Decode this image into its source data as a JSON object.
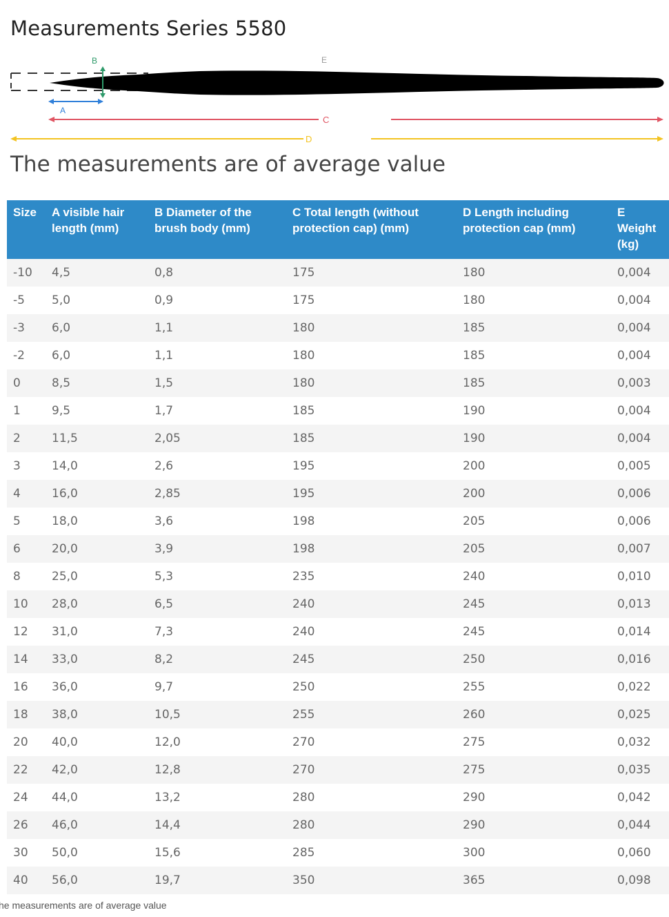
{
  "title": "Measurements Series 5580",
  "diagram": {
    "labels": {
      "A": "A",
      "B": "B",
      "C": "C",
      "D": "D",
      "E": "E"
    },
    "colors": {
      "A": "#2f7fd9",
      "B": "#2e9a6a",
      "C": "#e05563",
      "D": "#f3c321",
      "brush": "#000000"
    }
  },
  "subtitle": "The measurements are of average value",
  "table": {
    "headers": [
      "Size",
      "A visible hair length (mm)",
      "B Diameter of the brush body (mm)",
      "C Total length (without protection cap) (mm)",
      "D Length including protection cap (mm)",
      "E Weight (kg)"
    ],
    "rows": [
      [
        "-10",
        "4,5",
        "0,8",
        "175",
        "180",
        "0,004"
      ],
      [
        "-5",
        "5,0",
        "0,9",
        "175",
        "180",
        "0,004"
      ],
      [
        "-3",
        "6,0",
        "1,1",
        "180",
        "185",
        "0,004"
      ],
      [
        "-2",
        "6,0",
        "1,1",
        "180",
        "185",
        "0,004"
      ],
      [
        "0",
        "8,5",
        "1,5",
        "180",
        "185",
        "0,003"
      ],
      [
        "1",
        "9,5",
        "1,7",
        "185",
        "190",
        "0,004"
      ],
      [
        "2",
        "11,5",
        "2,05",
        "185",
        "190",
        "0,004"
      ],
      [
        "3",
        "14,0",
        "2,6",
        "195",
        "200",
        "0,005"
      ],
      [
        "4",
        "16,0",
        "2,85",
        "195",
        "200",
        "0,006"
      ],
      [
        "5",
        "18,0",
        "3,6",
        "198",
        "205",
        "0,006"
      ],
      [
        "6",
        "20,0",
        "3,9",
        "198",
        "205",
        "0,007"
      ],
      [
        "8",
        "25,0",
        "5,3",
        "235",
        "240",
        "0,010"
      ],
      [
        "10",
        "28,0",
        "6,5",
        "240",
        "245",
        "0,013"
      ],
      [
        "12",
        "31,0",
        "7,3",
        "240",
        "245",
        "0,014"
      ],
      [
        "14",
        "33,0",
        "8,2",
        "245",
        "250",
        "0,016"
      ],
      [
        "16",
        "36,0",
        "9,7",
        "250",
        "255",
        "0,022"
      ],
      [
        "18",
        "38,0",
        "10,5",
        "255",
        "260",
        "0,025"
      ],
      [
        "20",
        "40,0",
        "12,0",
        "270",
        "275",
        "0,032"
      ],
      [
        "22",
        "42,0",
        "12,8",
        "270",
        "275",
        "0,035"
      ],
      [
        "24",
        "44,0",
        "13,2",
        "280",
        "290",
        "0,042"
      ],
      [
        "26",
        "46,0",
        "14,4",
        "280",
        "290",
        "0,044"
      ],
      [
        "30",
        "50,0",
        "15,6",
        "285",
        "300",
        "0,060"
      ],
      [
        "40",
        "56,0",
        "19,7",
        "350",
        "365",
        "0,098"
      ]
    ]
  },
  "footer": "he measurements are of average value"
}
